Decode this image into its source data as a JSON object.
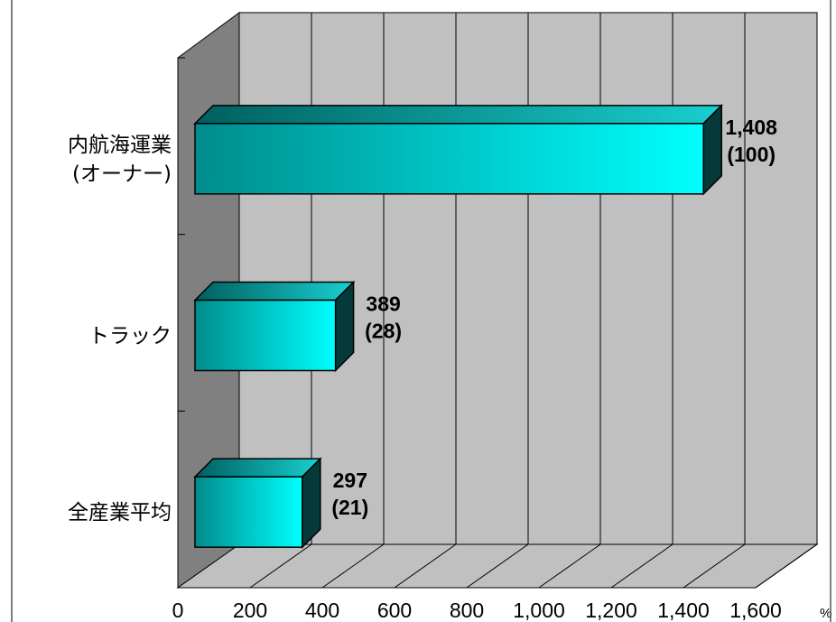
{
  "chart_data": {
    "type": "bar",
    "orientation": "horizontal",
    "three_d": true,
    "categories": [
      "内航海運業\n(オーナー)",
      "トラック",
      "全産業平均"
    ],
    "values": [
      1408,
      389,
      297
    ],
    "value_labels": [
      "1,408",
      "389",
      "297"
    ],
    "index_labels": [
      "(100)",
      "(28)",
      "(21)"
    ],
    "xlim": [
      0,
      1600
    ],
    "xticks": [
      "0",
      "200",
      "400",
      "600",
      "800",
      "1,000",
      "1,200",
      "1,400",
      "1,600"
    ],
    "unit_label": "%",
    "grid": true,
    "colors": {
      "bar_front_dark": "#008c8c",
      "bar_front_light": "#00ffff",
      "bar_top": "#0ba8a8",
      "bar_side": "#063a3a",
      "wall_back": "#c0c0c0",
      "wall_left": "#808080",
      "floor": "#c0c0c0"
    }
  }
}
